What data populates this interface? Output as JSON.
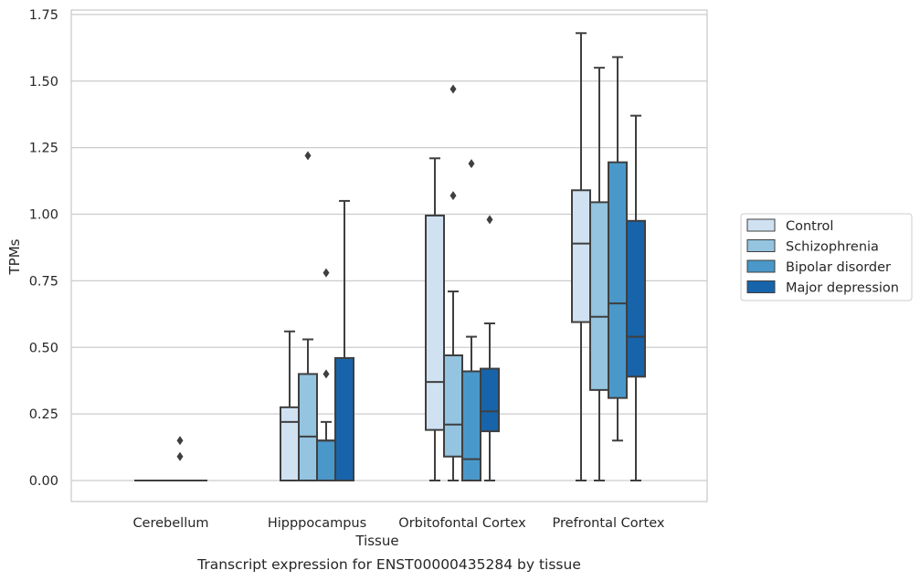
{
  "caption": "Transcript expression for ENST00000435284 by tissue",
  "chart_data": {
    "type": "box",
    "xlabel": "Tissue",
    "ylabel": "TPMs",
    "ylim": [
      -0.08,
      1.76
    ],
    "yticks": [
      "0.00",
      "0.25",
      "0.50",
      "0.75",
      "1.00",
      "1.25",
      "1.50",
      "1.75"
    ],
    "grid": true,
    "legend_position": "right",
    "categories": [
      "Cerebellum",
      "Hipppocampus",
      "Orbitofontal Cortex",
      "Prefrontal Cortex"
    ],
    "series": [
      {
        "name": "Control",
        "color": "#d0e1f2",
        "boxes": [
          {
            "q1": 0,
            "median": 0,
            "q3": 0,
            "whisker_low": 0,
            "whisker_high": 0,
            "outliers": []
          },
          {
            "q1": 0,
            "median": 0.22,
            "q3": 0.275,
            "whisker_low": 0,
            "whisker_high": 0.56,
            "outliers": []
          },
          {
            "q1": 0.19,
            "median": 0.37,
            "q3": 0.995,
            "whisker_low": 0,
            "whisker_high": 1.21,
            "outliers": []
          },
          {
            "q1": 0.595,
            "median": 0.89,
            "q3": 1.09,
            "whisker_low": 0,
            "whisker_high": 1.68,
            "outliers": []
          }
        ]
      },
      {
        "name": "Schizophrenia",
        "color": "#94c4df",
        "boxes": [
          {
            "q1": 0,
            "median": 0,
            "q3": 0,
            "whisker_low": 0,
            "whisker_high": 0,
            "outliers": []
          },
          {
            "q1": 0,
            "median": 0.165,
            "q3": 0.4,
            "whisker_low": 0,
            "whisker_high": 0.53,
            "outliers": [
              1.22
            ]
          },
          {
            "q1": 0.09,
            "median": 0.21,
            "q3": 0.47,
            "whisker_low": 0,
            "whisker_high": 0.71,
            "outliers": [
              1.07,
              1.47
            ]
          },
          {
            "q1": 0.34,
            "median": 0.615,
            "q3": 1.045,
            "whisker_low": 0,
            "whisker_high": 1.55,
            "outliers": []
          }
        ]
      },
      {
        "name": "Bipolar disorder",
        "color": "#4a98c9",
        "boxes": [
          {
            "q1": 0,
            "median": 0,
            "q3": 0,
            "whisker_low": 0,
            "whisker_high": 0,
            "outliers": [
              0.09,
              0.15
            ]
          },
          {
            "q1": 0,
            "median": 0.15,
            "q3": 0.15,
            "whisker_low": 0,
            "whisker_high": 0.22,
            "outliers": [
              0.4,
              0.78
            ]
          },
          {
            "q1": 0,
            "median": 0.08,
            "q3": 0.41,
            "whisker_low": 0,
            "whisker_high": 0.54,
            "outliers": [
              1.19
            ]
          },
          {
            "q1": 0.31,
            "median": 0.665,
            "q3": 1.195,
            "whisker_low": 0.15,
            "whisker_high": 1.59,
            "outliers": []
          }
        ]
      },
      {
        "name": "Major depression",
        "color": "#1764ab",
        "boxes": [
          {
            "q1": 0,
            "median": 0,
            "q3": 0,
            "whisker_low": 0,
            "whisker_high": 0,
            "outliers": []
          },
          {
            "q1": 0,
            "median": 0,
            "q3": 0.46,
            "whisker_low": 0,
            "whisker_high": 1.05,
            "outliers": []
          },
          {
            "q1": 0.185,
            "median": 0.26,
            "q3": 0.42,
            "whisker_low": 0,
            "whisker_high": 0.59,
            "outliers": [
              0.98
            ]
          },
          {
            "q1": 0.39,
            "median": 0.54,
            "q3": 0.975,
            "whisker_low": 0,
            "whisker_high": 1.37,
            "outliers": []
          }
        ]
      }
    ]
  }
}
